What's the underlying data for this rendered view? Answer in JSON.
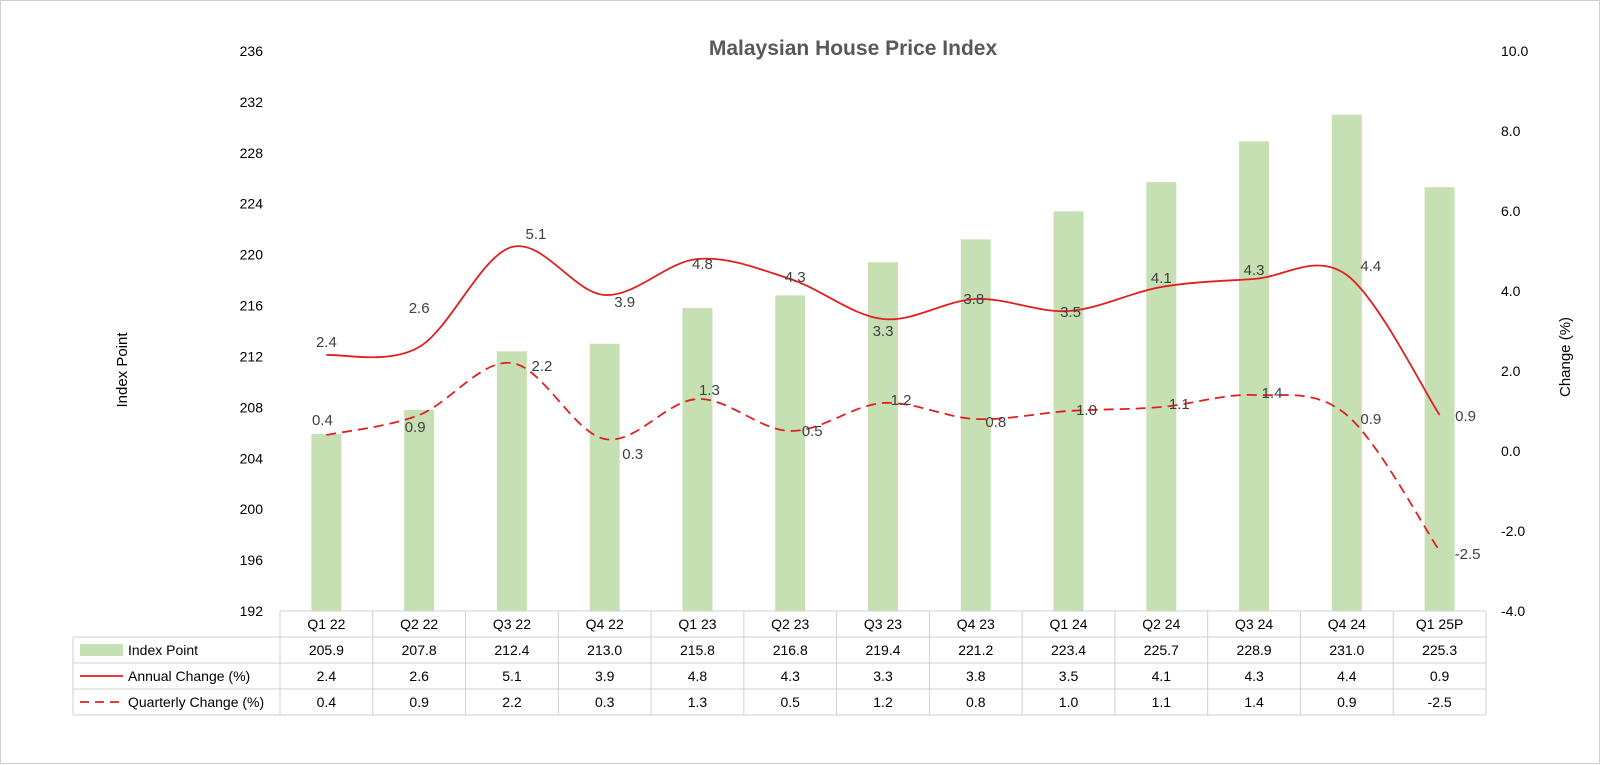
{
  "chart_data": {
    "type": "bar",
    "title": "Malaysian House Price Index",
    "ylabel": "Index Point",
    "y2label": "Change (%)",
    "categories": [
      "Q1 22",
      "Q2 22",
      "Q3 22",
      "Q4 22",
      "Q1 23",
      "Q2 23",
      "Q3 23",
      "Q4 23",
      "Q1 24",
      "Q2 24",
      "Q3 24",
      "Q4 24",
      "Q1 25P"
    ],
    "ylim": [
      192,
      236
    ],
    "yticks": [
      "192",
      "196",
      "200",
      "204",
      "208",
      "212",
      "216",
      "220",
      "224",
      "228",
      "232",
      "236"
    ],
    "y2lim": [
      -4.0,
      10.0
    ],
    "y2ticks": [
      "-4.0",
      "-2.0",
      "0.0",
      "2.0",
      "4.0",
      "6.0",
      "8.0",
      "10.0"
    ],
    "grid": false,
    "legend": "data-table",
    "series": [
      {
        "name": "Index Point",
        "kind": "bar",
        "axis": "left",
        "color": "#c6e0b4",
        "values": [
          205.9,
          207.8,
          212.4,
          213.0,
          215.8,
          216.8,
          219.4,
          221.2,
          223.4,
          225.7,
          228.9,
          231.0,
          225.3
        ],
        "table": [
          "205.9",
          "207.8",
          "212.4",
          "213.0",
          "215.8",
          "216.8",
          "219.4",
          "221.2",
          "223.4",
          "225.7",
          "228.9",
          "231.0",
          "225.3"
        ]
      },
      {
        "name": "Annual Change (%)",
        "kind": "line",
        "axis": "right",
        "color": "#e02020",
        "dash": "solid",
        "values": [
          2.4,
          2.6,
          5.1,
          3.9,
          4.8,
          4.3,
          3.3,
          3.8,
          3.5,
          4.1,
          4.3,
          4.4,
          0.9
        ],
        "table": [
          "2.4",
          "2.6",
          "5.1",
          "3.9",
          "4.8",
          "4.3",
          "3.3",
          "3.8",
          "3.5",
          "4.1",
          "4.3",
          "4.4",
          "0.9"
        ]
      },
      {
        "name": "Quarterly Change (%)",
        "kind": "line",
        "axis": "right",
        "color": "#e02020",
        "dash": "dashed",
        "values": [
          0.4,
          0.9,
          2.2,
          0.3,
          1.3,
          0.5,
          1.2,
          0.8,
          1.0,
          1.1,
          1.4,
          0.9,
          -2.5
        ],
        "table": [
          "0.4",
          "0.9",
          "2.2",
          "0.3",
          "1.3",
          "0.5",
          "1.2",
          "0.8",
          "1.0",
          "1.1",
          "1.4",
          "0.9",
          "-2.5"
        ]
      }
    ],
    "annotations": {
      "label_color_default": "#404040",
      "highlight_color": "#e02020",
      "highlighted_labels": [
        {
          "series": 2,
          "index": 3
        }
      ]
    }
  }
}
